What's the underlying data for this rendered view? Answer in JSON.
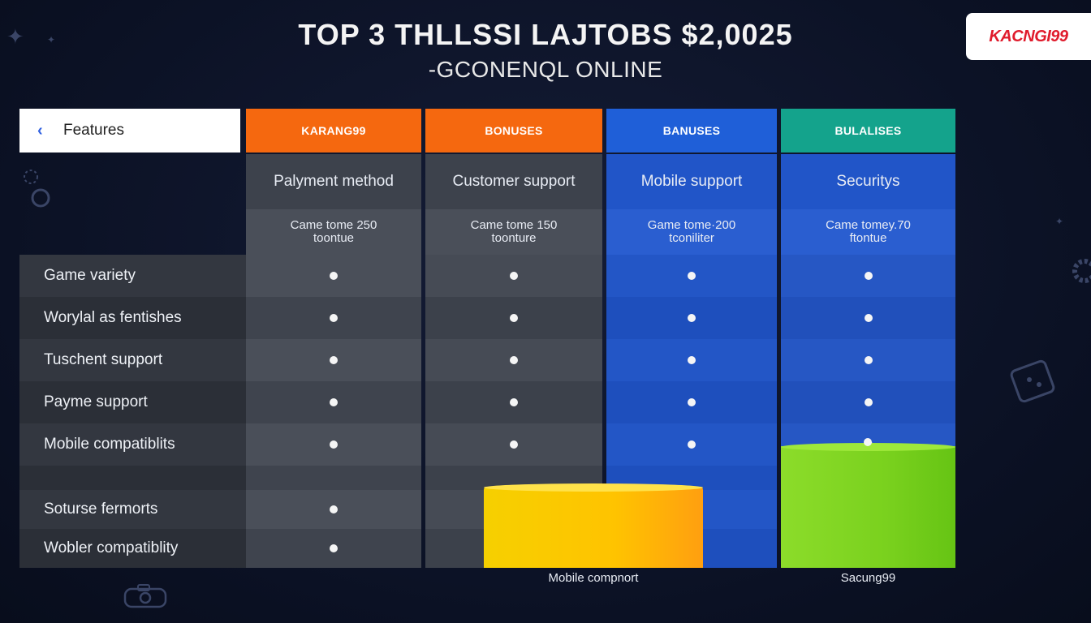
{
  "header": {
    "title": "TOP  3  THLLSSI LAJTOBS $2,0025",
    "subtitle": "-GCONENQL ONLINE"
  },
  "logo": {
    "text": "KACNGI99",
    "color": "#e01b2c"
  },
  "table": {
    "features_header": "Features",
    "columns": [
      {
        "header": "KARANG99",
        "subheader": "Palyment method",
        "note_line1": "Came tome 250",
        "note_line2": "toontue",
        "color": "#f5680f"
      },
      {
        "header": "BONUSES",
        "subheader": "Customer support",
        "note_line1": "Came tome 150",
        "note_line2": "toonture",
        "color": "#f5680f"
      },
      {
        "header": "BANUSES",
        "subheader": "Mobile support",
        "note_line1": "Game tome·200",
        "note_line2": "tconiliter",
        "color": "#1f5fd8"
      },
      {
        "header": "BULALISES",
        "subheader": "Securitys",
        "note_line1": "Came tomey.70",
        "note_line2": "ftontue",
        "color": "#14a38c"
      }
    ],
    "rows": [
      {
        "label": "Game variety",
        "marks": [
          true,
          true,
          true,
          true
        ]
      },
      {
        "label": "Worylal as fentishes",
        "marks": [
          true,
          true,
          true,
          true
        ]
      },
      {
        "label": "Tuschent support",
        "marks": [
          true,
          true,
          true,
          true
        ]
      },
      {
        "label": "Payme support",
        "marks": [
          true,
          true,
          true,
          true
        ]
      },
      {
        "label": "Mobile compatiblits",
        "marks": [
          true,
          true,
          true,
          true
        ]
      },
      {
        "label": "",
        "marks": [
          false,
          false,
          false,
          false
        ]
      },
      {
        "label": "Soturse fermorts",
        "marks": [
          true,
          false,
          false,
          false
        ]
      },
      {
        "label": "Wobler compatiblity",
        "marks": [
          true,
          false,
          false,
          false
        ]
      }
    ]
  },
  "captions": {
    "yellow_bar": "Mobile compnort",
    "green_bar": "Sacung99"
  }
}
